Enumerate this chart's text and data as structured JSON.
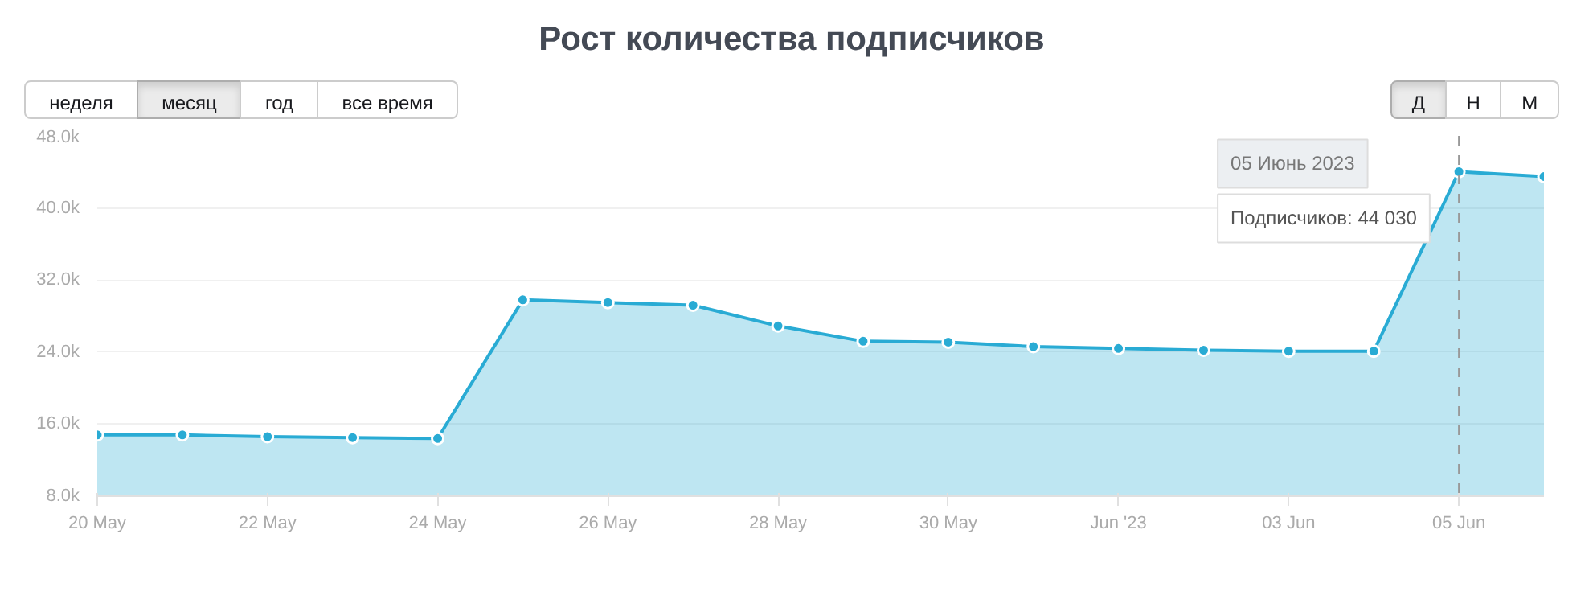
{
  "chart_data": {
    "type": "area",
    "title": "Рост количества подписчиков",
    "x": [
      "2023-05-20",
      "2023-05-21",
      "2023-05-22",
      "2023-05-23",
      "2023-05-24",
      "2023-05-25",
      "2023-05-26",
      "2023-05-27",
      "2023-05-28",
      "2023-05-29",
      "2023-05-30",
      "2023-05-31",
      "2023-06-01",
      "2023-06-02",
      "2023-06-03",
      "2023-06-04",
      "2023-06-05",
      "2023-06-06"
    ],
    "series": [
      {
        "color": "#29abd4",
        "values": [
          14800,
          14800,
          14600,
          14500,
          14400,
          29800,
          29500,
          29200,
          26900,
          25200,
          25100,
          24600,
          24400,
          24200,
          24100,
          24100,
          44030,
          43500
        ]
      }
    ],
    "xlim": [
      "2023-05-20",
      "2023-06-06"
    ],
    "xticks": [
      {
        "value": "2023-05-20",
        "label": "20 May"
      },
      {
        "value": "2023-05-22",
        "label": "22 May"
      },
      {
        "value": "2023-05-24",
        "label": "24 May"
      },
      {
        "value": "2023-05-26",
        "label": "26 May"
      },
      {
        "value": "2023-05-28",
        "label": "28 May"
      },
      {
        "value": "2023-05-30",
        "label": "30 May"
      },
      {
        "value": "2023-06-01",
        "label": "Jun '23"
      },
      {
        "value": "2023-06-03",
        "label": "03 Jun"
      },
      {
        "value": "2023-06-05",
        "label": "05 Jun"
      }
    ],
    "ylim": [
      8000,
      48000
    ],
    "yticks": [
      {
        "value": 8000,
        "label": "8.0k"
      },
      {
        "value": 16000,
        "label": "16.0k"
      },
      {
        "value": 24000,
        "label": "24.0k"
      },
      {
        "value": 32000,
        "label": "32.0k"
      },
      {
        "value": 40000,
        "label": "40.0k"
      },
      {
        "value": 48000,
        "label": "48.0k"
      }
    ],
    "grid": "y",
    "marker": "circle",
    "line_style": "solid",
    "ref_lines": [
      {
        "axis": "x",
        "value": "2023-06-05",
        "line_style": "dashed",
        "color": "#999999"
      }
    ],
    "annotations": [
      "неделя",
      "месяц",
      "год",
      "все время",
      "Д",
      "Н",
      "М",
      "05 Июнь 2023",
      "Подписчиков: 44 030"
    ]
  }
}
